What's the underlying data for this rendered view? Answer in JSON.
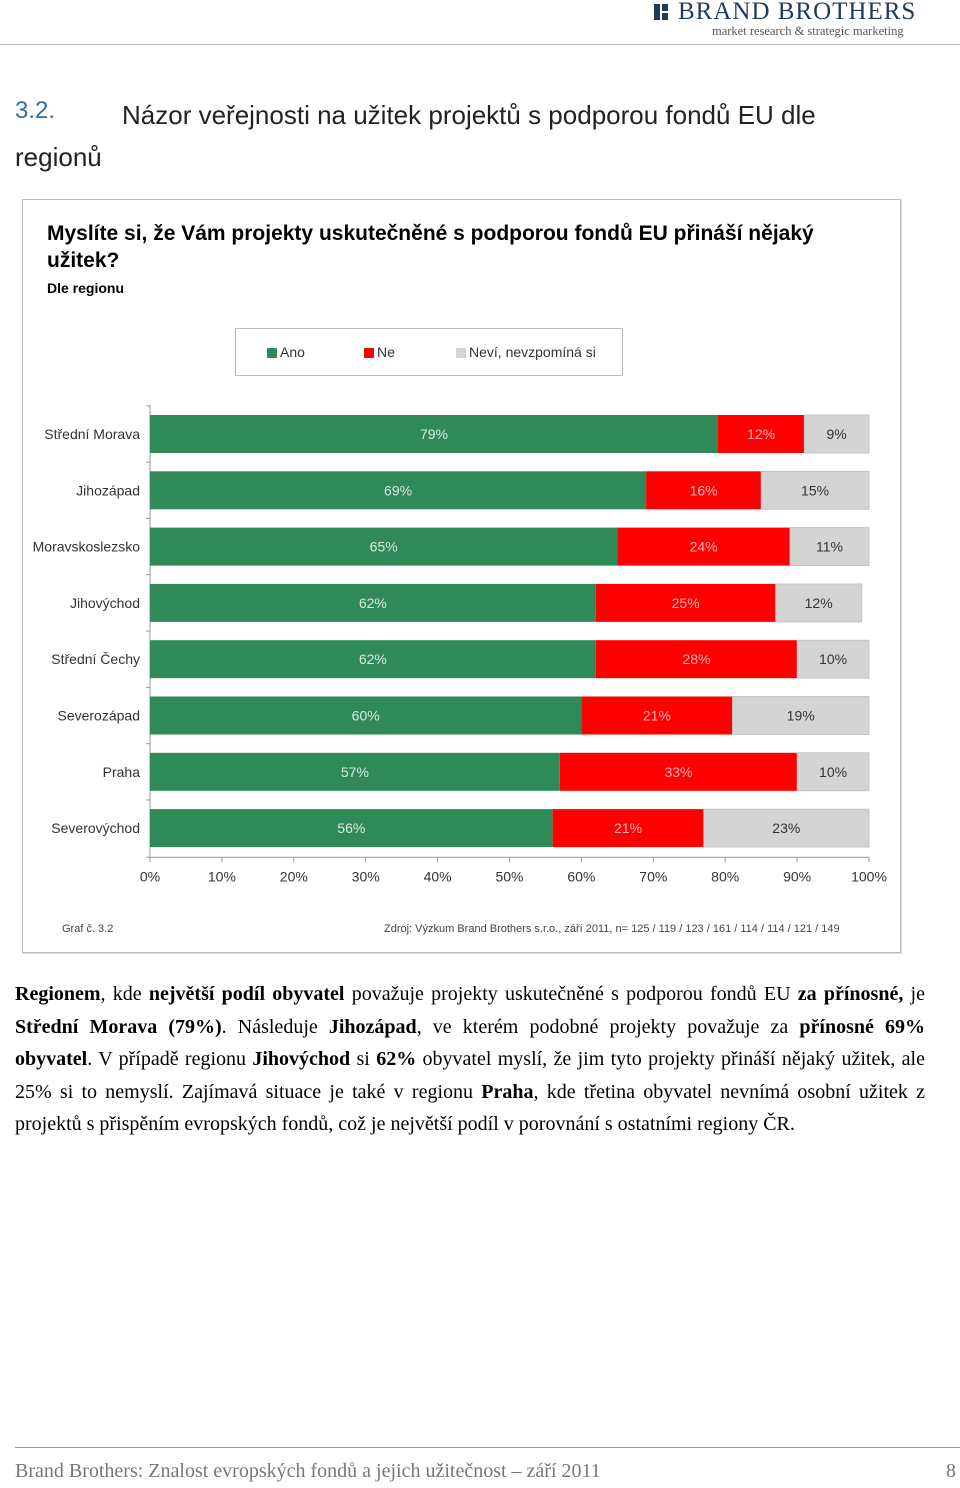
{
  "header": {
    "brand": "BRAND BROTHERS",
    "tagline": "market research & strategic marketing",
    "brand_color": "#1f3b5a"
  },
  "section": {
    "number": "3.2.",
    "title": "Názor veřejnosti na užitek projektů s podporou fondů EU dle regionů"
  },
  "chart": {
    "question": "Myslíte si, že Vám projekty uskutečněné s podporou fondů EU přináší nějaký užitek?",
    "subtitle": "Dle regionu",
    "graph_label": "Graf č. 3.2",
    "source": "Zdroj: Výzkum Brand Brothers s.r.o., září 2011, n= 125 / 119 / 123 / 161 / 114 / 114 / 121 / 149"
  },
  "chart_data": {
    "type": "bar",
    "orientation": "horizontal",
    "stacked": true,
    "categories": [
      "Střední Morava",
      "Jihozápad",
      "Moravskoslezsko",
      "Jihovýchod",
      "Střední Čechy",
      "Severozápad",
      "Praha",
      "Severovýchod"
    ],
    "series": [
      {
        "name": "Ano",
        "color": "#2f8a57",
        "values": [
          79,
          69,
          65,
          62,
          62,
          60,
          57,
          56
        ]
      },
      {
        "name": "Ne",
        "color": "#ff0000",
        "values": [
          12,
          16,
          24,
          25,
          28,
          21,
          33,
          21
        ]
      },
      {
        "name": "Neví, nevzpomíná si",
        "color": "#d4d4d4",
        "values": [
          9,
          15,
          11,
          12,
          10,
          19,
          10,
          23
        ]
      }
    ],
    "xlim": [
      0,
      100
    ],
    "x_ticks": [
      "0%",
      "10%",
      "20%",
      "30%",
      "40%",
      "50%",
      "60%",
      "70%",
      "80%",
      "90%",
      "100%"
    ],
    "legend_position": "top"
  },
  "body": {
    "p1": "Regionem",
    "p2": ", kde ",
    "p3": "největší podíl obyvatel",
    "p4": " považuje projekty uskutečněné s podporou fondů EU ",
    "p5": "za přínosné,",
    "p6": " je ",
    "p7": "Střední Morava (79%)",
    "p8": ". Následuje ",
    "p9": "Jihozápad",
    "p10": ", ve kterém podobné projekty považuje za ",
    "p11": "přínosné 69% obyvatel",
    "p12": ". V případě regionu ",
    "p13": "Jihovýchod",
    "p14": " si ",
    "p15": "62%",
    "p16": " obyvatel myslí, že jim tyto projekty přináší nějaký užitek, ale 25% si to nemyslí. Zajímavá situace je také v regionu ",
    "p17": "Praha",
    "p18": ", kde třetina obyvatel nevnímá osobní užitek z projektů s přispěním evropských fondů, což je největší podíl v porovnání s ostatními regiony ČR."
  },
  "footer": {
    "text": "Brand Brothers: Znalost evropských fondů a jejich užitečnost – září 2011",
    "page": "8"
  }
}
